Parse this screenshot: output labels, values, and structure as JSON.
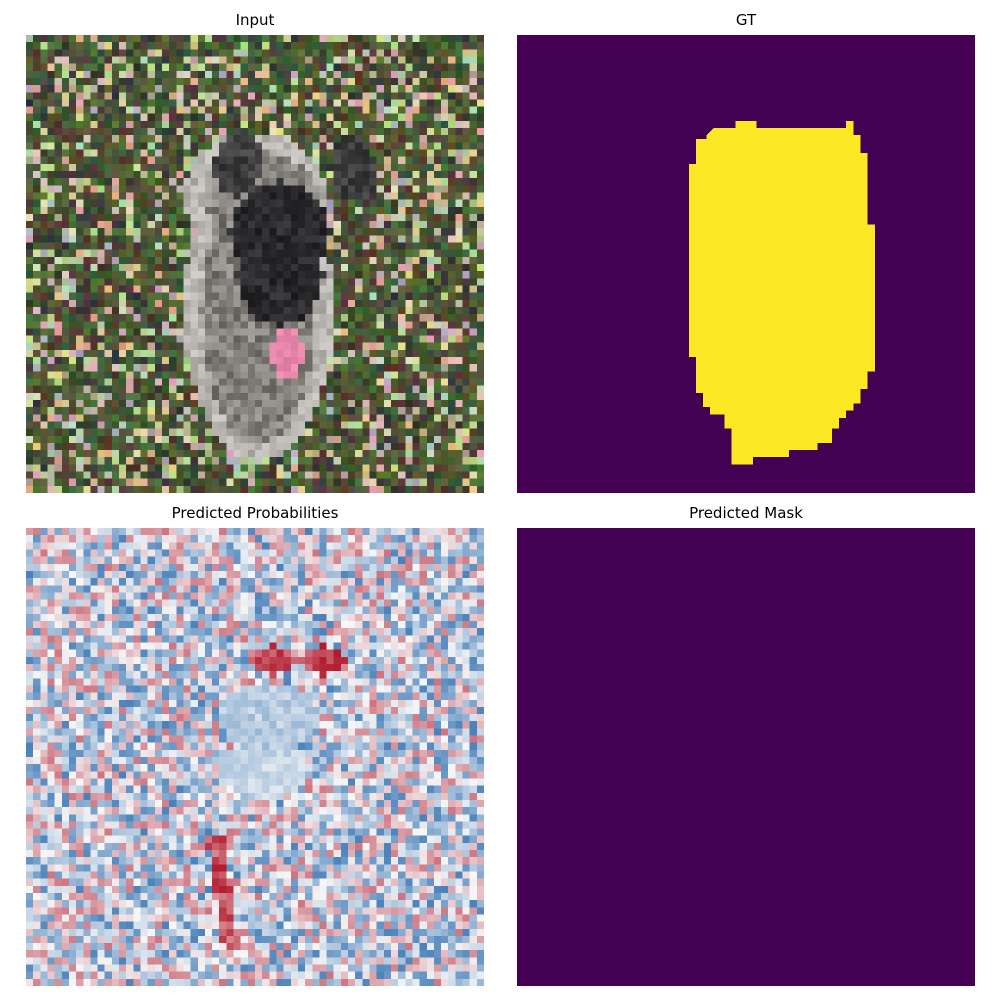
{
  "figure": {
    "panels": [
      {
        "title": "Input",
        "kind": "noisy-photo-dog"
      },
      {
        "title": "GT",
        "kind": "binary-mask"
      },
      {
        "title": "Predicted Probabilities",
        "kind": "probability-heatmap"
      },
      {
        "title": "Predicted Mask",
        "kind": "binary-mask-empty"
      }
    ]
  },
  "colors": {
    "mask_background": "#440154",
    "mask_foreground": "#fde725",
    "heat_low": "#2166ac",
    "heat_mid": "#f7f7f7",
    "heat_high": "#b2182b"
  }
}
